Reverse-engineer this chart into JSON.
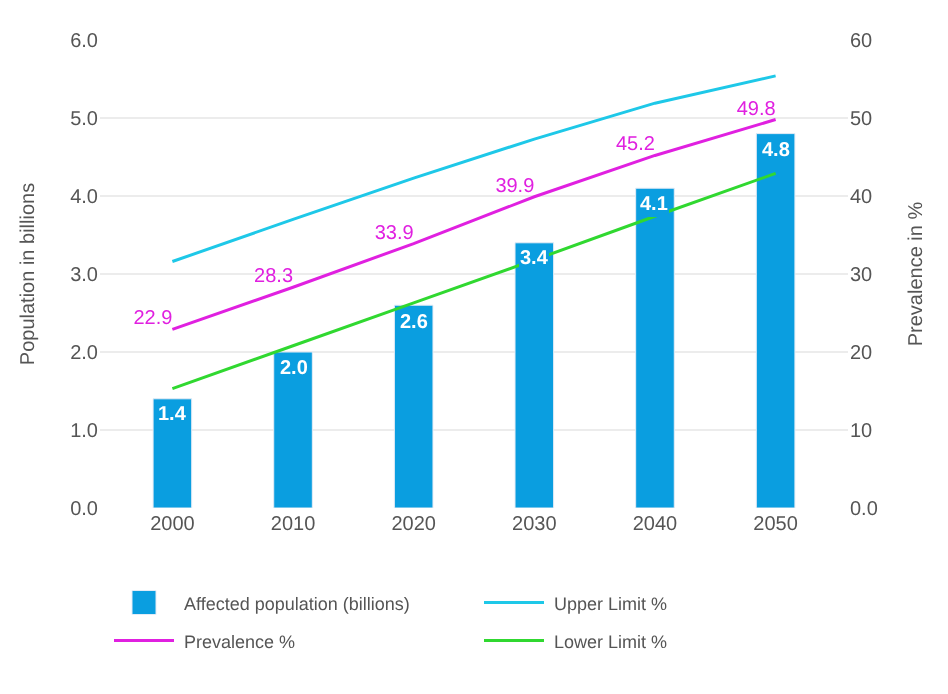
{
  "chart_data": {
    "type": "bar",
    "ylabel": "Population in billions",
    "y2label": "Prevalence in %",
    "categories": [
      "2000",
      "2010",
      "2020",
      "2030",
      "2040",
      "2050"
    ],
    "series": [
      {
        "name": "Affected population (billions)",
        "color": "#0a9ee0",
        "values": [
          1.4,
          2.0,
          2.6,
          3.4,
          4.1,
          4.8
        ],
        "value_labels": [
          "1.4",
          "2.0",
          "2.6",
          "3.4",
          "4.1",
          "4.8"
        ]
      },
      {
        "name": "Upper Limit %",
        "type": "line",
        "axis": "y2",
        "color": "#1ec8e8",
        "values": [
          31.6,
          37.0,
          42.3,
          47.3,
          51.9,
          55.4
        ]
      },
      {
        "name": "Prevalence %",
        "type": "line",
        "axis": "y2",
        "color": "#e020e0",
        "values": [
          22.9,
          28.3,
          33.9,
          39.9,
          45.2,
          49.8
        ],
        "value_labels": [
          "22.9",
          "28.3",
          "33.9",
          "39.9",
          "45.2",
          "49.8"
        ]
      },
      {
        "name": "Lower Limit %",
        "type": "line",
        "axis": "y2",
        "color": "#30d830",
        "values": [
          15.3,
          20.8,
          26.3,
          31.8,
          37.4,
          42.9
        ]
      }
    ],
    "ylim": [
      0,
      6
    ],
    "yticks": [
      {
        "value": 0,
        "label": "0.0"
      },
      {
        "value": 1,
        "label": "1.0"
      },
      {
        "value": 2,
        "label": "2.0"
      },
      {
        "value": 3,
        "label": "3.0"
      },
      {
        "value": 4,
        "label": "4.0"
      },
      {
        "value": 5,
        "label": "5.0"
      },
      {
        "value": 6,
        "label": "6.0"
      }
    ],
    "y2lim": [
      0,
      60
    ],
    "y2ticks": [
      {
        "value": 0,
        "label": "0.0"
      },
      10,
      20,
      30,
      40,
      50,
      60
    ],
    "grid": "y",
    "legend": "bottom",
    "marker": "none",
    "line_style": "solid"
  }
}
